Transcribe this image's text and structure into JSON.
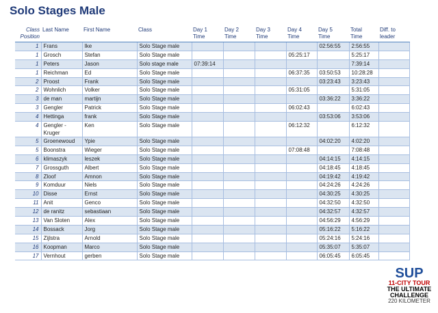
{
  "header": {
    "title": "Solo Stages Male"
  },
  "table": {
    "columns": [
      [
        "Class",
        "Position"
      ],
      "Last Name",
      "First Name",
      "Class",
      [
        "Day 1",
        "Time"
      ],
      [
        "Day 2",
        "Time"
      ],
      [
        "Day 3",
        "Time"
      ],
      [
        "Day 4",
        "Time"
      ],
      [
        "Day 5",
        "Time"
      ],
      [
        "Total",
        "Time"
      ],
      [
        "Diff. to",
        "leader"
      ]
    ],
    "rows": [
      [
        "1",
        "Frans",
        "Ike",
        "Solo Stage male",
        null,
        null,
        null,
        null,
        "02:56:55",
        "2:56:55",
        null
      ],
      [
        "1",
        "Grosch",
        "Stefan",
        "Solo Stage male",
        null,
        null,
        null,
        "05:25:17",
        null,
        "5:25:17",
        null
      ],
      [
        "1",
        "Peters",
        "Jason",
        "Solo stage male",
        "07:39:14",
        null,
        null,
        null,
        null,
        "7:39:14",
        null
      ],
      [
        "1",
        "Reichman",
        "Ed",
        "Solo Stage male",
        null,
        null,
        null,
        "06:37:35",
        "03:50:53",
        "10:28:28",
        null
      ],
      [
        "2",
        "Proost",
        "Frank",
        "Solo Stage male",
        null,
        null,
        null,
        null,
        "03:23:43",
        "3:23:43",
        null
      ],
      [
        "2",
        "Wohnlich",
        "Volker",
        "Solo Stage male",
        null,
        null,
        null,
        "05:31:05",
        null,
        "5:31:05",
        null
      ],
      [
        "3",
        "de man",
        "martijn",
        "Solo Stage male",
        null,
        null,
        null,
        null,
        "03:36:22",
        "3:36:22",
        null
      ],
      [
        "3",
        "Gengler",
        "Patrick",
        "Solo Stage male",
        null,
        null,
        null,
        "06:02:43",
        null,
        "6:02:43",
        null
      ],
      [
        "4",
        "Hettinga",
        "frank",
        "Solo Stage male",
        null,
        null,
        null,
        null,
        "03:53:06",
        "3:53:06",
        null
      ],
      [
        "4",
        "Gengler - Kruger",
        "Ken",
        "Solo Stage male",
        null,
        null,
        null,
        "06:12:32",
        null,
        "6:12:32",
        null
      ],
      [
        "5",
        "Groenewoud",
        "Ypie",
        "Solo Stage male",
        null,
        null,
        null,
        null,
        "04:02:20",
        "4:02:20",
        null
      ],
      [
        "5",
        "Boonstra",
        "Wieger",
        "Solo Stage male",
        null,
        null,
        null,
        "07:08:48",
        null,
        "7:08:48",
        null
      ],
      [
        "6",
        "klimaszyk",
        "leszek",
        "Solo Stage male",
        null,
        null,
        null,
        null,
        "04:14:15",
        "4:14:15",
        null
      ],
      [
        "7",
        "Grossguth",
        "Albert",
        "Solo Stage male",
        null,
        null,
        null,
        null,
        "04:18:45",
        "4:18:45",
        null
      ],
      [
        "8",
        "Zloof",
        "Amnon",
        "Solo Stage male",
        null,
        null,
        null,
        null,
        "04:19:42",
        "4:19:42",
        null
      ],
      [
        "9",
        "Komduur",
        "Niels",
        "Solo Stage male",
        null,
        null,
        null,
        null,
        "04:24:26",
        "4:24:26",
        null
      ],
      [
        "10",
        "Disse",
        "Ernst",
        "Solo Stage male",
        null,
        null,
        null,
        null,
        "04:30:25",
        "4:30:25",
        null
      ],
      [
        "11",
        "Anit",
        "Genco",
        "Solo Stage male",
        null,
        null,
        null,
        null,
        "04:32:50",
        "4:32:50",
        null
      ],
      [
        "12",
        "de ranitz",
        "sebastiaan",
        "Solo Stage male",
        null,
        null,
        null,
        null,
        "04:32:57",
        "4:32:57",
        null
      ],
      [
        "13",
        "Van Sloten",
        "Alex",
        "Solo Stage male",
        null,
        null,
        null,
        null,
        "04:56:29",
        "4:56:29",
        null
      ],
      [
        "14",
        "Bossack",
        "Jorg",
        "Solo Stage male",
        null,
        null,
        null,
        null,
        "05:16:22",
        "5:16:22",
        null
      ],
      [
        "15",
        "Zijlstra",
        "Arnold",
        "Solo Stage male",
        null,
        null,
        null,
        null,
        "05:24:16",
        "5:24:16",
        null
      ],
      [
        "16",
        "Koopman",
        "Marco",
        "Solo Stage male",
        null,
        null,
        null,
        null,
        "05:35:07",
        "5:35:07",
        null
      ],
      [
        "17",
        "Vernhout",
        "gerben",
        "Solo Stage male",
        null,
        null,
        null,
        null,
        "06:05:45",
        "6:05:45",
        null
      ]
    ]
  },
  "logo": {
    "brand": "SUP",
    "tour": "11-CITY TOUR",
    "line1": "THE ULTIMATE",
    "line2": "CHALLENGE",
    "distance": "220 KILOMETER"
  }
}
